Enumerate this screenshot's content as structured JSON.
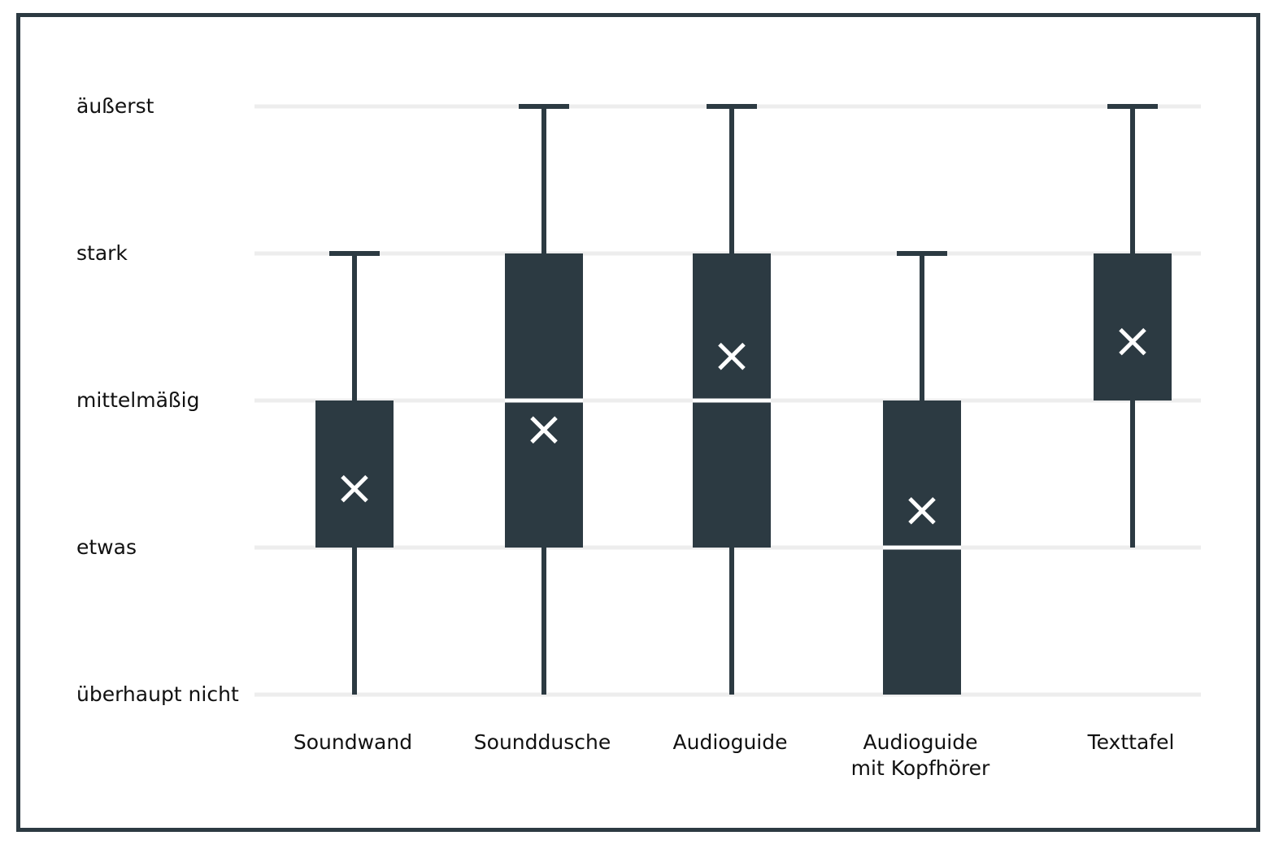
{
  "chart_data": {
    "type": "box",
    "y_levels": [
      "überhaupt nicht",
      "etwas",
      "mittelmäßig",
      "stark",
      "äußerst"
    ],
    "ylim": [
      1,
      5
    ],
    "grid": true,
    "categories": [
      [
        "Soundwand"
      ],
      [
        "Sounddusche"
      ],
      [
        "Audioguide"
      ],
      [
        "Audioguide",
        "mit Kopfhörer"
      ],
      [
        "Texttafel"
      ]
    ],
    "boxes": [
      {
        "whisker_low": 1,
        "q1": 2,
        "median": 2,
        "q3": 3,
        "whisker_high": 4,
        "mean": 2.4
      },
      {
        "whisker_low": 1,
        "q1": 2,
        "median": 3,
        "q3": 4,
        "whisker_high": 5,
        "mean": 2.8
      },
      {
        "whisker_low": 1,
        "q1": 2,
        "median": 3,
        "q3": 4,
        "whisker_high": 5,
        "mean": 3.3
      },
      {
        "whisker_low": 1,
        "q1": 1,
        "median": 2,
        "q3": 3,
        "whisker_high": 4,
        "mean": 2.25
      },
      {
        "whisker_low": 2,
        "q1": 3,
        "median": 3,
        "q3": 4,
        "whisker_high": 5,
        "mean": 3.4
      }
    ]
  },
  "colors": {
    "box": "#2c3a42",
    "grid": "#ededed",
    "mean_marker": "#ffffff",
    "frame": "#2c3a42"
  }
}
